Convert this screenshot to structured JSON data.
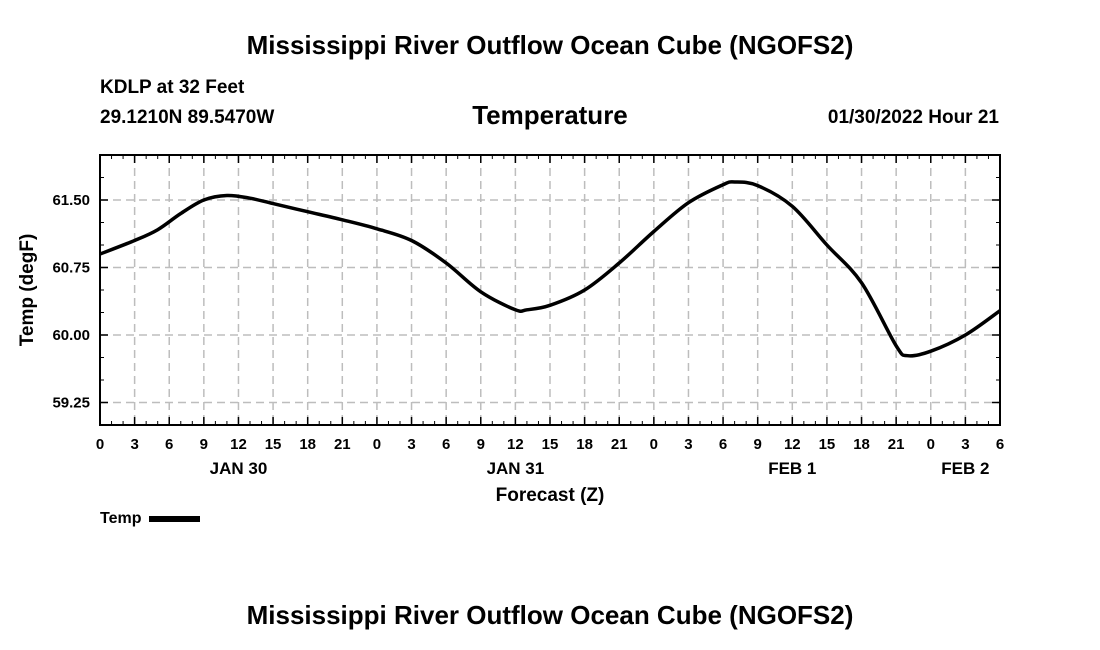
{
  "header": {
    "main_title": "Mississippi River Outflow Ocean Cube (NGOFS2)",
    "station": "KDLP at 32 Feet",
    "coordinates": "29.1210N  89.5470W",
    "subtitle": "Temperature",
    "datetime": "01/30/2022 Hour 21"
  },
  "footer": {
    "repeat_title": "Mississippi River Outflow Ocean Cube (NGOFS2)"
  },
  "legend": {
    "label": "Temp"
  },
  "chart_data": {
    "type": "line",
    "title": "Temperature",
    "xlabel": "Forecast (Z)",
    "ylabel": "Temp (degF)",
    "x_unit": "forecast hours from 00Z Jan 30",
    "xlim": [
      0,
      78
    ],
    "ylim": [
      59.0,
      62.0
    ],
    "grid": true,
    "legend_position": "bottom-left",
    "x_ticks": [
      0,
      3,
      6,
      9,
      12,
      15,
      18,
      21,
      24,
      27,
      30,
      33,
      36,
      39,
      42,
      45,
      48,
      51,
      54,
      57,
      60,
      63,
      66,
      69,
      72,
      75,
      78
    ],
    "x_tick_labels": [
      "0",
      "3",
      "6",
      "9",
      "12",
      "15",
      "18",
      "21",
      "0",
      "3",
      "6",
      "9",
      "12",
      "15",
      "18",
      "21",
      "0",
      "3",
      "6",
      "9",
      "12",
      "15",
      "18",
      "21",
      "0",
      "3",
      "6"
    ],
    "day_labels": [
      {
        "x": 12,
        "label": "JAN 30"
      },
      {
        "x": 36,
        "label": "JAN 31"
      },
      {
        "x": 60,
        "label": "FEB 1"
      },
      {
        "x": 75,
        "label": "FEB 2"
      }
    ],
    "y_ticks": [
      59.25,
      60.0,
      60.75,
      61.5
    ],
    "y_tick_labels": [
      "59.25",
      "60.00",
      "60.75",
      "61.50"
    ],
    "series": [
      {
        "name": "Temp",
        "x": [
          0,
          3,
          5,
          7,
          9,
          11,
          13,
          15,
          18,
          21,
          24,
          27,
          30,
          33,
          36,
          37,
          39,
          42,
          45,
          48,
          51,
          54,
          55,
          57,
          60,
          63,
          66,
          69,
          70,
          72,
          75,
          78
        ],
        "y": [
          60.9,
          61.05,
          61.17,
          61.35,
          61.5,
          61.55,
          61.52,
          61.46,
          61.37,
          61.28,
          61.18,
          61.05,
          60.8,
          60.48,
          60.28,
          60.28,
          60.33,
          60.5,
          60.8,
          61.15,
          61.47,
          61.67,
          61.7,
          61.66,
          61.43,
          61.0,
          60.58,
          59.88,
          59.77,
          59.82,
          60.0,
          60.27
        ]
      }
    ]
  }
}
